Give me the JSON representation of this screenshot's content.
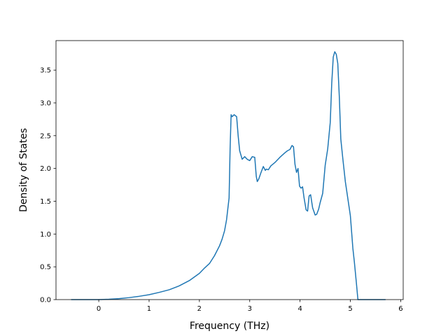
{
  "chart_data": {
    "type": "line",
    "title": "",
    "xlabel": "Frequency (THz)",
    "ylabel": "Density of States",
    "xlim": [
      -0.85,
      6.05
    ],
    "ylim": [
      0,
      3.95
    ],
    "xticks": [
      0,
      1,
      2,
      3,
      4,
      5,
      6
    ],
    "xtick_labels": [
      "0",
      "1",
      "2",
      "3",
      "4",
      "5",
      "6"
    ],
    "yticks": [
      0.0,
      0.5,
      1.0,
      1.5,
      2.0,
      2.5,
      3.0,
      3.5
    ],
    "ytick_labels": [
      "0.0",
      "0.5",
      "1.0",
      "1.5",
      "2.0",
      "2.5",
      "3.0",
      "3.5"
    ],
    "grid": false,
    "legend": "none",
    "series": [
      {
        "color": "#1f77b4",
        "x": [
          -0.55,
          -0.2,
          0.0,
          0.2,
          0.4,
          0.6,
          0.8,
          1.0,
          1.2,
          1.4,
          1.6,
          1.8,
          2.0,
          2.1,
          2.2,
          2.3,
          2.4,
          2.45,
          2.5,
          2.54,
          2.57,
          2.59,
          2.61,
          2.63,
          2.65,
          2.69,
          2.74,
          2.77,
          2.8,
          2.85,
          2.9,
          2.95,
          3.0,
          3.05,
          3.1,
          3.13,
          3.15,
          3.18,
          3.22,
          3.27,
          3.31,
          3.33,
          3.37,
          3.42,
          3.5,
          3.6,
          3.7,
          3.75,
          3.8,
          3.84,
          3.87,
          3.9,
          3.93,
          3.96,
          3.99,
          4.02,
          4.05,
          4.08,
          4.12,
          4.15,
          4.18,
          4.21,
          4.25,
          4.3,
          4.33,
          4.37,
          4.4,
          4.45,
          4.5,
          4.55,
          4.6,
          4.63,
          4.66,
          4.69,
          4.72,
          4.75,
          4.78,
          4.81,
          4.85,
          4.9,
          5.0,
          5.05,
          5.08,
          5.12,
          5.15,
          5.2,
          5.3,
          5.5,
          5.7
        ],
        "y": [
          0.0,
          0.0,
          0.0,
          0.005,
          0.015,
          0.03,
          0.05,
          0.075,
          0.11,
          0.15,
          0.21,
          0.29,
          0.4,
          0.48,
          0.55,
          0.67,
          0.82,
          0.92,
          1.05,
          1.22,
          1.42,
          1.55,
          2.3,
          2.82,
          2.79,
          2.82,
          2.79,
          2.5,
          2.27,
          2.14,
          2.18,
          2.14,
          2.12,
          2.18,
          2.17,
          1.88,
          1.8,
          1.84,
          1.93,
          2.03,
          1.97,
          1.99,
          1.98,
          2.04,
          2.09,
          2.17,
          2.24,
          2.27,
          2.29,
          2.35,
          2.33,
          2.06,
          1.94,
          2.0,
          1.73,
          1.7,
          1.72,
          1.55,
          1.37,
          1.35,
          1.58,
          1.6,
          1.4,
          1.29,
          1.3,
          1.38,
          1.48,
          1.62,
          2.05,
          2.3,
          2.7,
          3.3,
          3.7,
          3.78,
          3.74,
          3.6,
          3.1,
          2.45,
          2.15,
          1.8,
          1.28,
          0.78,
          0.57,
          0.25,
          0.0,
          0.0,
          0.0,
          0.0,
          0.0
        ]
      }
    ]
  }
}
